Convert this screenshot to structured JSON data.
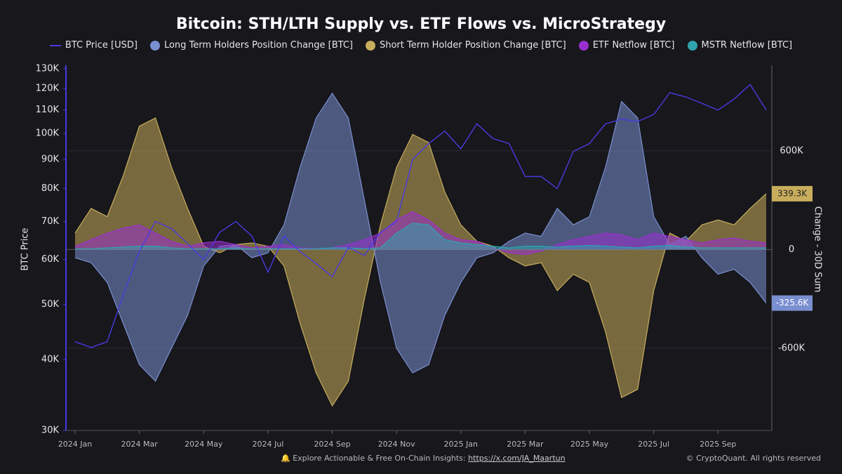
{
  "chart_data": {
    "type": "area-line",
    "title": "Bitcoin: STH/LTH Supply vs. ETF Flows vs. MicroStrategy",
    "y_label": "BTC Price",
    "y2_label": "Change - 30D Sum",
    "categories": [
      "2024 Jan",
      null,
      null,
      null,
      "2024 Mar",
      null,
      null,
      null,
      "2024 May",
      null,
      null,
      null,
      "2024 Jul",
      null,
      null,
      null,
      "2024 Sep",
      null,
      null,
      null,
      "2024 Nov",
      null,
      null,
      null,
      "2025 Jan",
      null,
      null,
      null,
      "2025 Mar",
      null,
      null,
      null,
      "2025 May",
      null,
      null,
      null,
      "2025 Jul",
      null,
      null,
      null,
      "2025 Sep",
      null,
      null,
      null
    ],
    "ylim": [
      30000,
      130000
    ],
    "log_scale": true,
    "yticks": [
      {
        "value": 30000,
        "label": "30K"
      },
      {
        "value": 40000,
        "label": "40K"
      },
      {
        "value": 50000,
        "label": "50K"
      },
      {
        "value": 60000,
        "label": "60K"
      },
      {
        "value": 70000,
        "label": "70K"
      },
      {
        "value": 80000,
        "label": "80K"
      },
      {
        "value": 90000,
        "label": "90K"
      },
      {
        "value": 100000,
        "label": "100K"
      },
      {
        "value": 110000,
        "label": "110K"
      },
      {
        "value": 120000,
        "label": "120K"
      },
      {
        "value": 130000,
        "label": "130K"
      }
    ],
    "y2lim": [
      -1100000,
      1120000
    ],
    "y2ticks": [
      {
        "value": -600000,
        "label": "-600K"
      },
      0,
      {
        "value": 600000,
        "label": "600K"
      }
    ],
    "grid": true,
    "series": [
      {
        "name": "Short Term Holder Position Change [BTC]",
        "color": "#c8ad5c",
        "axis": "y2",
        "kind": "area",
        "values": [
          100000,
          250000,
          200000,
          450000,
          750000,
          800000,
          500000,
          250000,
          20000,
          -20000,
          30000,
          40000,
          20000,
          -100000,
          -450000,
          -750000,
          -950000,
          -800000,
          -300000,
          150000,
          500000,
          700000,
          650000,
          350000,
          150000,
          50000,
          20000,
          -50000,
          -100000,
          -80000,
          -250000,
          -150000,
          -200000,
          -500000,
          -900000,
          -850000,
          -250000,
          100000,
          50000,
          150000,
          180000,
          150000,
          250000,
          339300
        ],
        "value_labels": [
          null,
          null,
          null,
          null,
          null,
          null,
          null,
          null,
          null,
          null,
          null,
          null,
          null,
          null,
          null,
          null,
          null,
          null,
          null,
          null,
          null,
          null,
          null,
          null,
          null,
          null,
          null,
          null,
          null,
          null,
          null,
          null,
          null,
          null,
          null,
          null,
          null,
          null,
          null,
          null,
          null,
          null,
          null,
          "339.3K"
        ]
      },
      {
        "name": "Long Term Holders Position Change [BTC]",
        "color": "#7a8fd0",
        "axis": "y2",
        "kind": "area",
        "values": [
          -50000,
          -80000,
          -200000,
          -450000,
          -700000,
          -800000,
          -600000,
          -400000,
          -100000,
          20000,
          30000,
          -50000,
          -20000,
          150000,
          500000,
          800000,
          950000,
          800000,
          300000,
          -200000,
          -600000,
          -750000,
          -700000,
          -400000,
          -200000,
          -50000,
          -20000,
          50000,
          100000,
          80000,
          250000,
          150000,
          200000,
          500000,
          900000,
          800000,
          200000,
          30000,
          80000,
          -50000,
          -150000,
          -120000,
          -200000,
          -325600
        ],
        "value_labels": [
          null,
          null,
          null,
          null,
          null,
          null,
          null,
          null,
          null,
          null,
          null,
          null,
          null,
          null,
          null,
          null,
          null,
          null,
          null,
          null,
          null,
          null,
          null,
          null,
          null,
          null,
          null,
          null,
          null,
          null,
          null,
          null,
          null,
          null,
          null,
          null,
          null,
          null,
          null,
          null,
          null,
          null,
          null,
          "-325.6K"
        ]
      },
      {
        "name": "ETF Netflow [BTC]",
        "color": "#9a2fcf",
        "axis": "y2",
        "kind": "area",
        "values": [
          20000,
          60000,
          100000,
          130000,
          150000,
          100000,
          50000,
          20000,
          40000,
          50000,
          30000,
          10000,
          20000,
          30000,
          10000,
          5000,
          10000,
          30000,
          60000,
          100000,
          180000,
          230000,
          180000,
          100000,
          60000,
          50000,
          10000,
          -20000,
          -30000,
          -10000,
          30000,
          60000,
          80000,
          100000,
          90000,
          60000,
          100000,
          80000,
          60000,
          40000,
          60000,
          70000,
          50000,
          40000
        ]
      },
      {
        "name": "MSTR Netflow [BTC]",
        "color": "#2fa3ad",
        "axis": "y2",
        "kind": "area",
        "values": [
          5000,
          5000,
          10000,
          15000,
          20000,
          20000,
          10000,
          5000,
          5000,
          5000,
          10000,
          5000,
          5000,
          5000,
          5000,
          5000,
          10000,
          10000,
          5000,
          10000,
          100000,
          160000,
          150000,
          60000,
          40000,
          30000,
          20000,
          10000,
          20000,
          20000,
          15000,
          20000,
          25000,
          20000,
          15000,
          10000,
          20000,
          25000,
          15000,
          10000,
          10000,
          10000,
          10000,
          10000
        ]
      },
      {
        "name": "BTC Price [USD]",
        "color": "#4a3ae0",
        "axis": "y",
        "kind": "line",
        "values": [
          43000,
          42000,
          43000,
          52000,
          62000,
          70000,
          68000,
          64000,
          60000,
          67000,
          70000,
          66000,
          57000,
          66000,
          62000,
          59000,
          56000,
          63000,
          61000,
          67000,
          70000,
          90000,
          96000,
          101000,
          94000,
          104000,
          98000,
          96000,
          84000,
          84000,
          80000,
          93000,
          96000,
          104000,
          106000,
          105000,
          108000,
          118000,
          116000,
          113000,
          110000,
          115000,
          122000,
          110000
        ]
      }
    ],
    "legend_order": [
      4,
      1,
      0,
      2,
      3
    ],
    "footer": {
      "text": "Explore Actionable & Free On-Chain Insights:",
      "link": "https://x.com/JA_Maartun",
      "credit": "© CryptoQuant. All rights reserved"
    }
  }
}
